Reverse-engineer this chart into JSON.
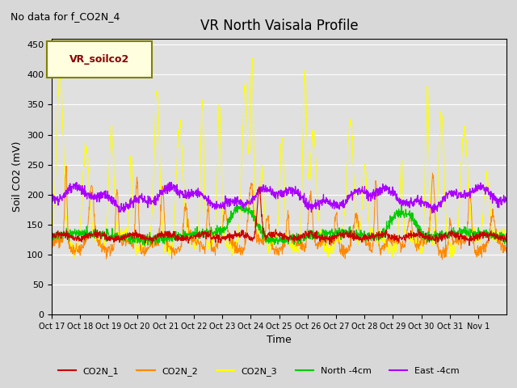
{
  "title": "VR North Vaisala Profile",
  "subtitle": "No data for f_CO2N_4",
  "ylabel": "Soil CO2 (mV)",
  "xlabel": "Time",
  "legend_label": "VR_soilco2",
  "ylim": [
    0,
    460
  ],
  "yticks": [
    0,
    50,
    100,
    150,
    200,
    250,
    300,
    350,
    400,
    450
  ],
  "xtick_labels": [
    "Oct 17",
    "Oct 18",
    "Oct 19",
    "Oct 20",
    "Oct 21",
    "Oct 22",
    "Oct 23",
    "Oct 24",
    "Oct 25",
    "Oct 26",
    "Oct 27",
    "Oct 28",
    "Oct 29",
    "Oct 30",
    "Oct 31",
    "Nov 1"
  ],
  "n_days": 16,
  "bg_color": "#e0e0e0",
  "colors": {
    "CO2N_1": "#cc0000",
    "CO2N_2": "#ff8800",
    "CO2N_3": "#ffff00",
    "North": "#00cc00",
    "East": "#aa00ff"
  },
  "legend_entries": [
    {
      "label": "CO2N_1",
      "color": "#cc0000"
    },
    {
      "label": "CO2N_2",
      "color": "#ff8800"
    },
    {
      "label": "CO2N_3",
      "color": "#ffff00"
    },
    {
      "label": "North -4cm",
      "color": "#00cc00"
    },
    {
      "label": "East -4cm",
      "color": "#aa00ff"
    }
  ]
}
